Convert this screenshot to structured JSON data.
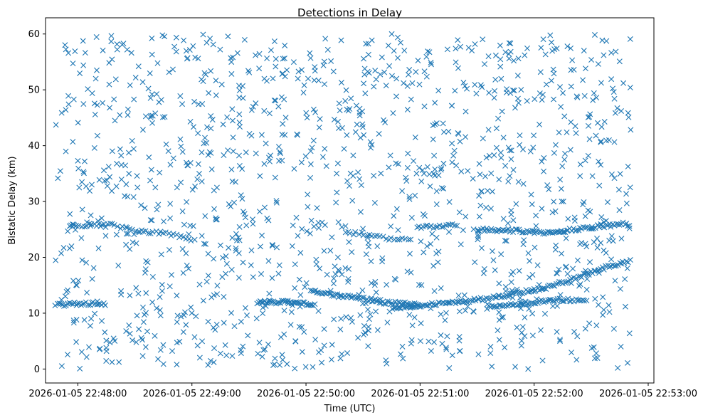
{
  "chart_data": {
    "type": "scatter",
    "title": "Detections in Delay",
    "xlabel": "Time (UTC)",
    "ylabel": "Bistatic Delay (km)",
    "marker": "x",
    "color": "#1f77b4",
    "xlim_seconds_after_start": [
      -17,
      303
    ],
    "ylim": [
      -2.5,
      62.9
    ],
    "x_ticks": [
      {
        "offset_s": 0,
        "label": "2026-01-05 22:48:00"
      },
      {
        "offset_s": 60,
        "label": "2026-01-05 22:49:00"
      },
      {
        "offset_s": 120,
        "label": "2026-01-05 22:50:00"
      },
      {
        "offset_s": 180,
        "label": "2026-01-05 22:51:00"
      },
      {
        "offset_s": 240,
        "label": "2026-01-05 22:52:00"
      },
      {
        "offset_s": 300,
        "label": "2026-01-05 22:53:00"
      }
    ],
    "y_ticks": [
      0,
      10,
      20,
      30,
      40,
      50,
      60
    ],
    "x_data_range_seconds": [
      -12,
      291
    ],
    "clutter_points": 1300,
    "clutter_y_range": [
      0,
      60
    ],
    "tracks": [
      {
        "name": "track-a",
        "points": [
          [
            -12,
            11.5
          ],
          [
            -5,
            11.6
          ],
          [
            5,
            11.7
          ],
          [
            15,
            11.7
          ]
        ],
        "count": 30
      },
      {
        "name": "track-b",
        "points": [
          [
            -5,
            25.5
          ],
          [
            5,
            25.8
          ],
          [
            15,
            26.0
          ],
          [
            20,
            25.6
          ],
          [
            30,
            24.8
          ],
          [
            40,
            24.5
          ],
          [
            50,
            24.0
          ],
          [
            55,
            23.5
          ],
          [
            62,
            23.0
          ]
        ],
        "count": 50
      },
      {
        "name": "track-c",
        "points": [
          [
            95,
            12.1
          ],
          [
            105,
            12.0
          ],
          [
            115,
            11.8
          ],
          [
            125,
            11.6
          ]
        ],
        "count": 40
      },
      {
        "name": "track-d",
        "points": [
          [
            122,
            14.0
          ],
          [
            135,
            13.2
          ],
          [
            150,
            12.6
          ],
          [
            160,
            12.0
          ],
          [
            170,
            11.7
          ],
          [
            180,
            11.5
          ]
        ],
        "count": 70
      },
      {
        "name": "track-e",
        "points": [
          [
            165,
            11.0
          ],
          [
            175,
            11.2
          ],
          [
            185,
            11.5
          ],
          [
            200,
            12.0
          ],
          [
            215,
            12.6
          ],
          [
            230,
            13.5
          ],
          [
            245,
            14.5
          ],
          [
            255,
            15.5
          ],
          [
            268,
            17.0
          ],
          [
            280,
            18.5
          ],
          [
            291,
            19.5
          ]
        ],
        "count": 140
      },
      {
        "name": "track-f",
        "points": [
          [
            215,
            11.0
          ],
          [
            230,
            11.5
          ],
          [
            240,
            12.0
          ],
          [
            255,
            12.4
          ],
          [
            268,
            12.2
          ]
        ],
        "count": 60
      },
      {
        "name": "track-g",
        "points": [
          [
            178,
            25.5
          ],
          [
            190,
            25.5
          ],
          [
            200,
            25.8
          ]
        ],
        "count": 20
      },
      {
        "name": "track-h",
        "points": [
          [
            210,
            25.0
          ],
          [
            225,
            24.8
          ],
          [
            240,
            24.6
          ],
          [
            250,
            24.3
          ],
          [
            260,
            25.0
          ],
          [
            275,
            25.5
          ],
          [
            287,
            26.0
          ],
          [
            291,
            25.8
          ]
        ],
        "count": 90
      },
      {
        "name": "track-i",
        "points": [
          [
            140,
            24.5
          ],
          [
            150,
            24.2
          ],
          [
            160,
            23.5
          ],
          [
            168,
            23.2
          ],
          [
            176,
            23.0
          ]
        ],
        "count": 25
      }
    ]
  }
}
